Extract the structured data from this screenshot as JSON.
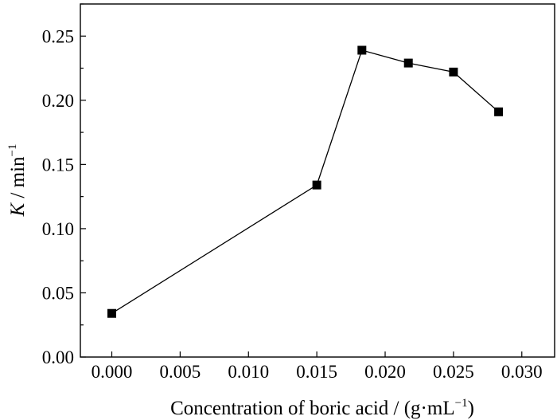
{
  "chart_data": {
    "type": "line",
    "title": "",
    "xlabel": "Concentration of boric acid / (g·mL",
    "xlabel_sup": "−1",
    "xlabel_tail": ")",
    "ylabel": "K",
    "ylabel_unit": " / min",
    "ylabel_sup": "−1",
    "xlim": [
      -0.0023,
      0.0324
    ],
    "ylim": [
      0.0,
      0.275
    ],
    "x_ticks": [
      "0.000",
      "0.005",
      "0.010",
      "0.015",
      "0.020",
      "0.025",
      "0.030"
    ],
    "y_ticks": [
      "0.00",
      "0.05",
      "0.10",
      "0.15",
      "0.20",
      "0.25"
    ],
    "grid": false,
    "legend": "none",
    "series": [
      {
        "x": [
          0.0,
          0.015,
          0.0183,
          0.0217,
          0.025,
          0.0283
        ],
        "y": [
          0.034,
          0.134,
          0.239,
          0.229,
          0.222,
          0.191
        ]
      }
    ]
  }
}
